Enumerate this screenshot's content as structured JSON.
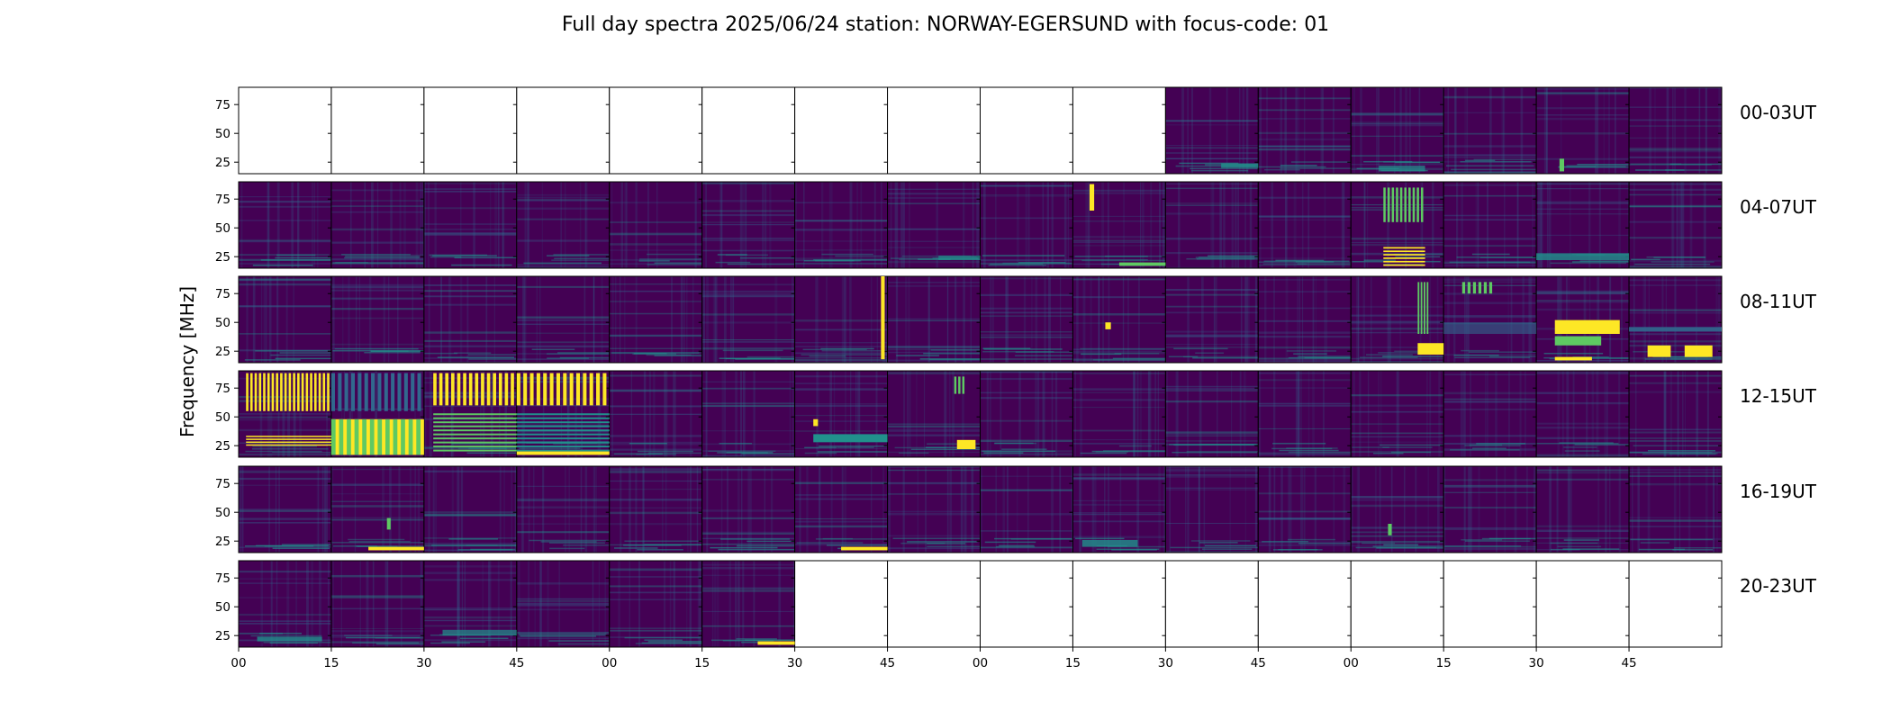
{
  "chart_data": {
    "type": "heatmap",
    "title": "Full day spectra 2025/06/24 station: NORWAY-EGERSUND with focus-code: 01",
    "ylabel": "Frequency [MHz]",
    "ylim": [
      15,
      90
    ],
    "yticks": [
      25,
      50,
      75
    ],
    "xtick_labels": [
      "00",
      "15",
      "30",
      "45",
      "00",
      "15",
      "30",
      "45",
      "00",
      "15",
      "30",
      "45",
      "00",
      "15",
      "30",
      "45"
    ],
    "colormap": "viridis",
    "colors": {
      "background": "#440154",
      "mid": "#31688e",
      "teal": "#21918c",
      "green": "#5ec962",
      "bright": "#fde725"
    },
    "rows": [
      {
        "label": "00-03UT",
        "panels_with_data": [
          10,
          11,
          12,
          13,
          14,
          15
        ]
      },
      {
        "label": "04-07UT",
        "panels_with_data": [
          0,
          1,
          2,
          3,
          4,
          5,
          6,
          7,
          8,
          9,
          10,
          11,
          12,
          13,
          14,
          15
        ]
      },
      {
        "label": "08-11UT",
        "panels_with_data": [
          0,
          1,
          2,
          3,
          4,
          5,
          6,
          7,
          8,
          9,
          10,
          11,
          12,
          13,
          14,
          15
        ]
      },
      {
        "label": "12-15UT",
        "panels_with_data": [
          0,
          1,
          2,
          3,
          4,
          5,
          6,
          7,
          8,
          9,
          10,
          11,
          12,
          13,
          14,
          15
        ]
      },
      {
        "label": "16-19UT",
        "panels_with_data": [
          0,
          1,
          2,
          3,
          4,
          5,
          6,
          7,
          8,
          9,
          10,
          11,
          12,
          13,
          14,
          15
        ]
      },
      {
        "label": "20-23UT",
        "panels_with_data": [
          0,
          1,
          2,
          3,
          4,
          5
        ]
      }
    ]
  }
}
